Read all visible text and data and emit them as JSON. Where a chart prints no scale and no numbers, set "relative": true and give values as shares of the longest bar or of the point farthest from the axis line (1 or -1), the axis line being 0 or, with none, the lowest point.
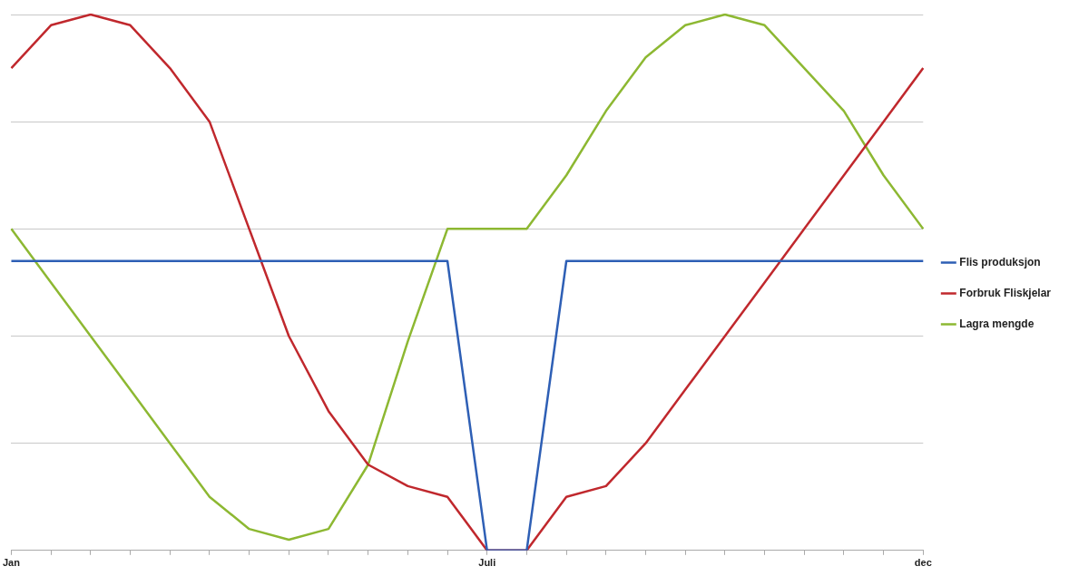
{
  "chart_data": {
    "type": "line",
    "relative": true,
    "grid": "y",
    "legend": "right",
    "marker": "none",
    "line_style": "solid",
    "categories": [
      "Jan",
      null,
      null,
      null,
      null,
      null,
      null,
      null,
      null,
      null,
      null,
      null,
      "Juli",
      null,
      null,
      null,
      null,
      null,
      null,
      null,
      null,
      null,
      null,
      "dec"
    ],
    "series": [
      {
        "name": "Flis produksjon",
        "color": "#2e5fb5",
        "values": [
          0.54,
          0.54,
          0.54,
          0.54,
          0.54,
          0.54,
          0.54,
          0.54,
          0.54,
          0.54,
          0.54,
          0.54,
          0,
          0,
          0.54,
          0.54,
          0.54,
          0.54,
          0.54,
          0.54,
          0.54,
          0.54,
          0.54,
          0.54
        ]
      },
      {
        "name": "Forbruk Fliskjelar",
        "color": "#c0282d",
        "values": [
          0.9,
          0.98,
          1,
          0.98,
          0.9,
          0.8,
          0.6,
          0.4,
          0.26,
          0.16,
          0.12,
          0.1,
          0,
          0,
          0.1,
          0.12,
          0.2,
          0.3,
          0.4,
          0.5,
          0.6,
          0.7,
          0.8,
          0.9
        ]
      },
      {
        "name": "Lagra mengde",
        "color": "#8db832",
        "values": [
          0.6,
          0.5,
          0.4,
          0.3,
          0.2,
          0.1,
          0.04,
          0.02,
          0.04,
          0.16,
          0.39,
          0.6,
          0.6,
          0.6,
          0.7,
          0.82,
          0.92,
          0.98,
          1,
          0.98,
          0.9,
          0.82,
          0.7,
          0.6
        ]
      }
    ]
  }
}
